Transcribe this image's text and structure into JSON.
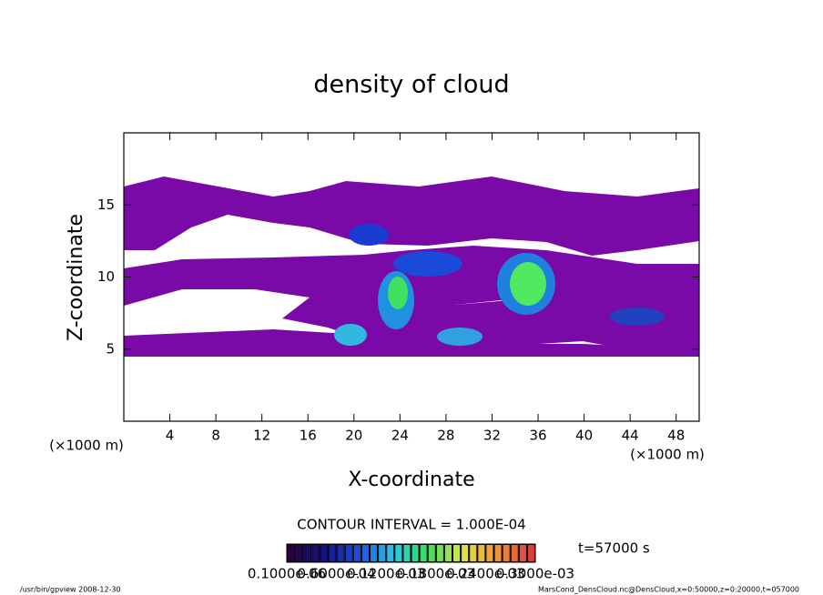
{
  "chart_data": {
    "type": "contour",
    "title": "density of cloud",
    "x_label": "X-coordinate",
    "y_label": "Z-coordinate",
    "x_unit": "(×1000 m)",
    "y_unit": "(×1000 m)",
    "xlim": [
      0,
      50
    ],
    "ylim": [
      0,
      20
    ],
    "xticks": [
      4,
      8,
      12,
      16,
      20,
      24,
      28,
      32,
      36,
      40,
      44,
      48
    ],
    "yticks": [
      5,
      10,
      15
    ],
    "contour_interval": "CONTOUR INTERVAL = 1.000E-04",
    "time": "t=57000 s",
    "colorbar_labels": [
      "0.1000e-06",
      "0.6000e-04",
      "0.1200e-03",
      "0.1800e-03",
      "0.2400e-03",
      "0.3000e-03"
    ],
    "footer_left": "/usr/bin/gpview   2008-12-30",
    "footer_right": "MarsCond_DensCloud.nc@DensCloud,x=0:50000,z=0:20000,t=057000"
  }
}
